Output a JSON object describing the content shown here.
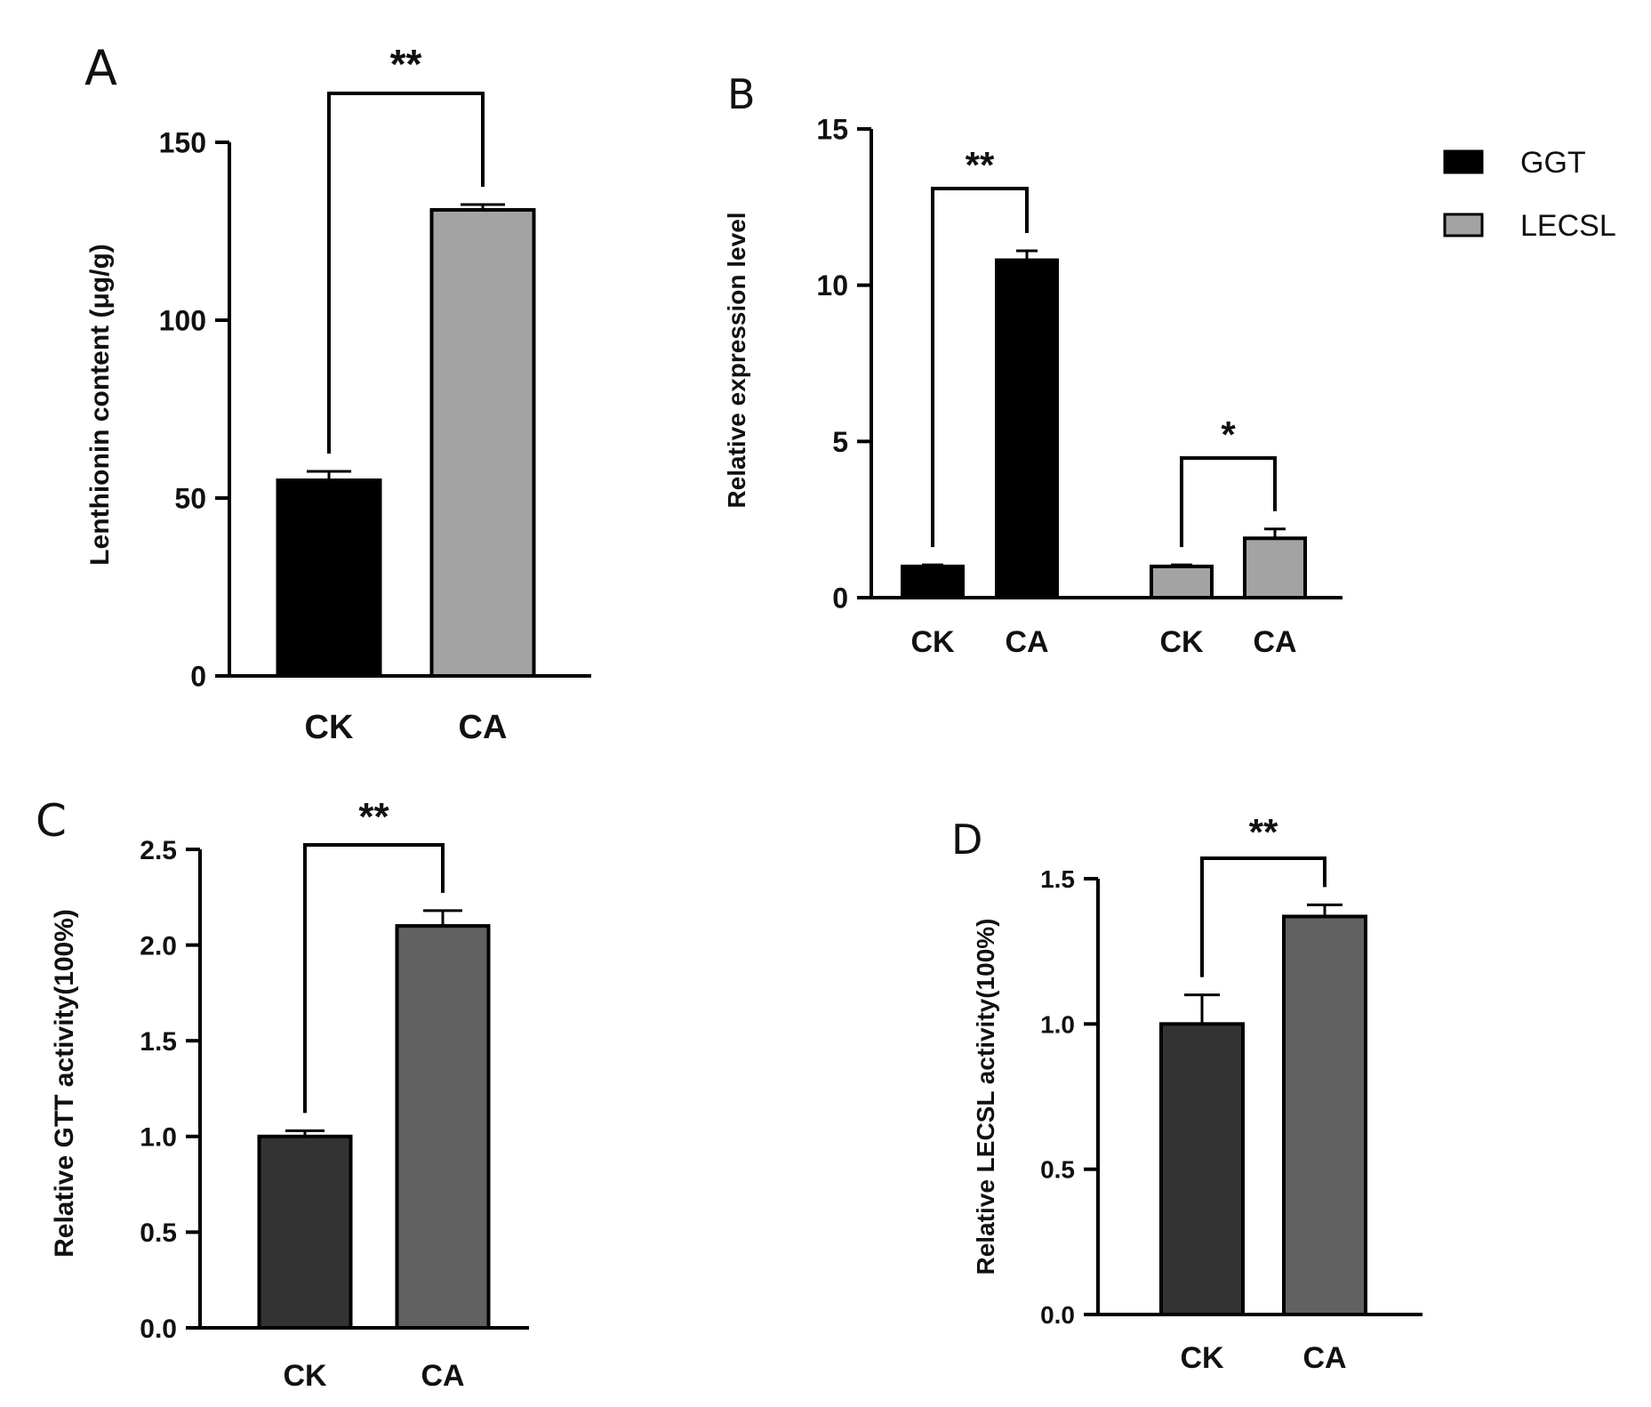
{
  "figure": {
    "legend": [
      {
        "label": "GGT",
        "color": "#000000"
      },
      {
        "label": "LECSL",
        "color": "#a3a3a3"
      }
    ]
  },
  "chart_data": [
    {
      "panel": "A",
      "type": "bar",
      "categories": [
        "CK",
        "CA"
      ],
      "values": [
        55,
        131
      ],
      "errors": [
        2.5,
        1.5
      ],
      "colors": [
        "#000000",
        "#a3a3a3"
      ],
      "ylabel": "Lenthionin content (μg/g)",
      "ylim": [
        0,
        150
      ],
      "yticks": [
        0,
        50,
        100,
        150
      ],
      "significance": [
        {
          "from": 0,
          "to": 1,
          "label": "**"
        }
      ]
    },
    {
      "panel": "B",
      "type": "bar",
      "groups": [
        {
          "name": "GGT",
          "categories": [
            "CK",
            "CA"
          ],
          "values": [
            1.0,
            10.8
          ],
          "errors": [
            0.05,
            0.3
          ],
          "color": "#000000"
        },
        {
          "name": "LECSL",
          "categories": [
            "CK",
            "CA"
          ],
          "values": [
            1.0,
            1.9
          ],
          "errors": [
            0.05,
            0.3
          ],
          "color": "#a3a3a3"
        }
      ],
      "ylabel": "Relative expression level",
      "ylim": [
        0,
        15
      ],
      "yticks": [
        0,
        5,
        10,
        15
      ],
      "significance": [
        {
          "group": 0,
          "label": "**"
        },
        {
          "group": 1,
          "label": "*"
        }
      ]
    },
    {
      "panel": "C",
      "type": "bar",
      "categories": [
        "CK",
        "CA"
      ],
      "values": [
        1.0,
        2.1
      ],
      "errors": [
        0.03,
        0.08
      ],
      "colors": [
        "#333333",
        "#616161"
      ],
      "ylabel": "Relative GTT activity(100%)",
      "ylim": [
        0,
        2.5
      ],
      "yticks": [
        "0.0",
        "0.5",
        "1.0",
        "1.5",
        "2.0",
        "2.5"
      ],
      "significance": [
        {
          "from": 0,
          "to": 1,
          "label": "**"
        }
      ]
    },
    {
      "panel": "D",
      "type": "bar",
      "categories": [
        "CK",
        "CA"
      ],
      "values": [
        1.0,
        1.37
      ],
      "errors": [
        0.1,
        0.04
      ],
      "colors": [
        "#333333",
        "#616161"
      ],
      "ylabel": "Relative LECSL activity(100%)",
      "ylim": [
        0,
        1.5
      ],
      "yticks": [
        "0.0",
        "0.5",
        "1.0",
        "1.5"
      ],
      "significance": [
        {
          "from": 0,
          "to": 1,
          "label": "**"
        }
      ]
    }
  ]
}
